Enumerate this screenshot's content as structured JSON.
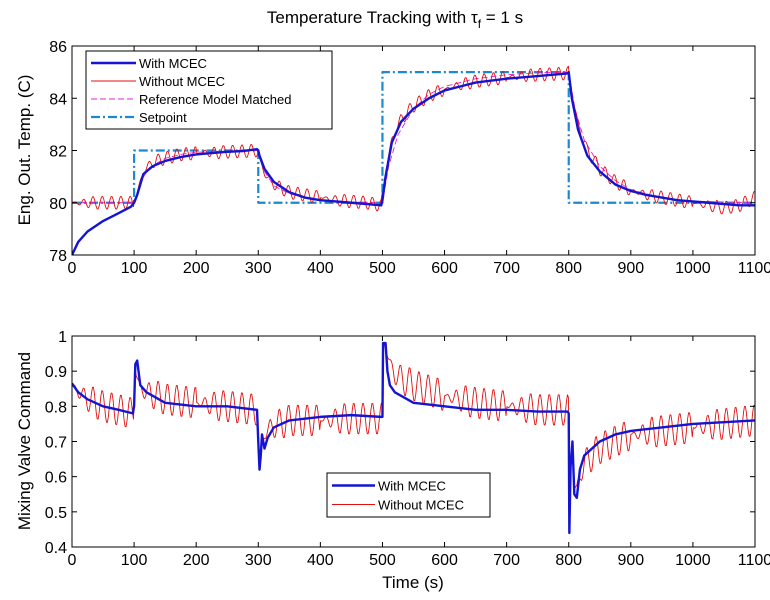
{
  "figure": {
    "title_main": "Temperature Tracking with τ",
    "title_sub": "f",
    "title_tail": " = 1 s"
  },
  "colors": {
    "with_mcec": "#1414d2",
    "without_mcec": "#e01010",
    "reference": "#e020e0",
    "setpoint": "#1a8ad0"
  },
  "chart_data": [
    {
      "type": "line",
      "title": "Temperature Tracking with τf = 1 s",
      "xlabel": "",
      "ylabel": "Eng. Out. Temp. (C)",
      "xlim": [
        0,
        1100
      ],
      "ylim": [
        78,
        86
      ],
      "xticks": [
        "0",
        "100",
        "200",
        "300",
        "400",
        "500",
        "600",
        "700",
        "800",
        "900",
        "1000",
        "1100"
      ],
      "yticks": [
        "78",
        "80",
        "82",
        "84",
        "86"
      ],
      "legend_position": "top-left",
      "series": [
        {
          "name": "With MCEC",
          "style": "solid-thick",
          "x": [
            0,
            10,
            25,
            50,
            75,
            95,
            100,
            105,
            115,
            130,
            150,
            175,
            200,
            225,
            250,
            275,
            298,
            300,
            302,
            310,
            325,
            350,
            375,
            400,
            425,
            450,
            475,
            498,
            500,
            505,
            515,
            530,
            550,
            575,
            600,
            625,
            650,
            700,
            750,
            798,
            800,
            805,
            815,
            830,
            850,
            875,
            900,
            925,
            950,
            975,
            1000,
            1025,
            1050,
            1075,
            1100
          ],
          "y": [
            78.0,
            78.5,
            78.9,
            79.3,
            79.6,
            79.85,
            80.0,
            80.3,
            81.1,
            81.4,
            81.6,
            81.75,
            81.85,
            81.9,
            81.95,
            81.98,
            82.05,
            82.0,
            81.8,
            81.3,
            80.8,
            80.4,
            80.2,
            80.1,
            80.05,
            80.0,
            79.95,
            79.9,
            80.1,
            81.0,
            82.3,
            83.1,
            83.6,
            84.0,
            84.3,
            84.45,
            84.6,
            84.75,
            84.85,
            84.95,
            85.0,
            84.0,
            82.8,
            81.8,
            81.2,
            80.7,
            80.45,
            80.3,
            80.2,
            80.1,
            80.05,
            80.0,
            79.95,
            79.9,
            79.9
          ]
        },
        {
          "name": "Without MCEC",
          "style": "solid-thin",
          "x": [
            0,
            100,
            105,
            115,
            130,
            150,
            175,
            200,
            225,
            250,
            275,
            298,
            300,
            302,
            310,
            325,
            350,
            375,
            400,
            425,
            450,
            475,
            498,
            500,
            505,
            515,
            530,
            550,
            575,
            600,
            625,
            650,
            700,
            750,
            798,
            800,
            805,
            815,
            830,
            850,
            875,
            900,
            925,
            950,
            975,
            1000,
            1025,
            1050,
            1075,
            1100
          ],
          "y": [
            80.0,
            80.0,
            80.4,
            81.2,
            81.55,
            81.7,
            81.85,
            81.9,
            81.92,
            81.95,
            81.97,
            82.0,
            81.95,
            81.7,
            81.1,
            80.7,
            80.4,
            80.3,
            80.2,
            80.1,
            80.05,
            80.0,
            79.9,
            80.2,
            81.2,
            82.4,
            83.2,
            83.7,
            84.1,
            84.35,
            84.5,
            84.65,
            84.8,
            84.9,
            84.95,
            85.0,
            84.2,
            83.0,
            82.0,
            81.3,
            80.8,
            80.5,
            80.3,
            80.2,
            80.1,
            80.0,
            79.9,
            79.8,
            79.9,
            80.2
          ],
          "oscillation_amplitude": 0.25
        },
        {
          "name": "Reference Model Matched",
          "style": "dashed",
          "x": [
            0,
            100,
            110,
            125,
            150,
            175,
            200,
            250,
            300,
            310,
            325,
            350,
            375,
            400,
            450,
            500,
            510,
            525,
            550,
            575,
            600,
            650,
            700,
            750,
            800,
            810,
            825,
            850,
            875,
            900,
            950,
            1000,
            1100
          ],
          "y": [
            80.0,
            80.0,
            80.8,
            81.35,
            81.7,
            81.85,
            81.93,
            81.98,
            82.0,
            81.2,
            80.65,
            80.35,
            80.18,
            80.08,
            80.02,
            80.0,
            81.4,
            82.6,
            83.6,
            84.15,
            84.45,
            84.75,
            84.9,
            84.97,
            85.0,
            83.6,
            82.4,
            81.4,
            80.85,
            80.5,
            80.18,
            80.06,
            80.0
          ]
        },
        {
          "name": "Setpoint",
          "style": "dashdot",
          "x": [
            0,
            100,
            100,
            300,
            300,
            500,
            500,
            800,
            800,
            1100
          ],
          "y": [
            80,
            80,
            82,
            82,
            80,
            80,
            85,
            85,
            80,
            80
          ]
        }
      ]
    },
    {
      "type": "line",
      "title": "",
      "xlabel": "Time (s)",
      "ylabel": "Mixing Valve Command",
      "xlim": [
        0,
        1100
      ],
      "ylim": [
        0.4,
        1.0
      ],
      "xticks": [
        "0",
        "100",
        "200",
        "300",
        "400",
        "500",
        "600",
        "700",
        "800",
        "900",
        "1000",
        "1100"
      ],
      "yticks": [
        "0.4",
        "0.5",
        "0.6",
        "0.7",
        "0.8",
        "0.9",
        "1"
      ],
      "legend_position": "bottom-center",
      "series": [
        {
          "name": "With MCEC",
          "style": "solid-thick",
          "x": [
            0,
            10,
            25,
            50,
            75,
            98,
            100,
            102,
            105,
            110,
            120,
            150,
            200,
            250,
            298,
            300,
            302,
            304,
            306,
            310,
            315,
            325,
            350,
            400,
            450,
            498,
            500,
            501,
            505,
            508,
            512,
            520,
            550,
            600,
            650,
            700,
            750,
            798,
            800,
            801,
            803,
            806,
            809,
            813,
            818,
            825,
            850,
            875,
            900,
            950,
            1000,
            1050,
            1100
          ],
          "y": [
            0.865,
            0.84,
            0.82,
            0.8,
            0.79,
            0.78,
            0.8,
            0.92,
            0.93,
            0.86,
            0.84,
            0.81,
            0.8,
            0.8,
            0.79,
            0.7,
            0.62,
            0.66,
            0.72,
            0.68,
            0.71,
            0.74,
            0.76,
            0.77,
            0.775,
            0.77,
            0.77,
            0.98,
            0.98,
            0.9,
            0.86,
            0.84,
            0.81,
            0.8,
            0.79,
            0.79,
            0.785,
            0.785,
            0.78,
            0.44,
            0.63,
            0.7,
            0.55,
            0.54,
            0.62,
            0.66,
            0.7,
            0.72,
            0.73,
            0.74,
            0.75,
            0.755,
            0.76
          ]
        },
        {
          "name": "Without MCEC",
          "style": "solid-thin",
          "x": [
            0,
            10,
            25,
            50,
            75,
            98,
            100,
            102,
            105,
            110,
            120,
            150,
            200,
            250,
            298,
            300,
            302,
            304,
            306,
            310,
            320,
            350,
            400,
            450,
            498,
            500,
            501,
            505,
            512,
            520,
            550,
            600,
            650,
            700,
            750,
            798,
            800,
            801,
            803,
            806,
            809,
            813,
            818,
            825,
            850,
            875,
            900,
            950,
            1000,
            1050,
            1100
          ],
          "y": [
            0.865,
            0.84,
            0.82,
            0.8,
            0.79,
            0.78,
            0.8,
            0.9,
            0.88,
            0.85,
            0.84,
            0.82,
            0.81,
            0.8,
            0.79,
            0.7,
            0.62,
            0.64,
            0.7,
            0.72,
            0.74,
            0.76,
            0.76,
            0.765,
            0.765,
            0.77,
            0.98,
            0.97,
            0.92,
            0.89,
            0.86,
            0.83,
            0.81,
            0.8,
            0.79,
            0.79,
            0.78,
            0.45,
            0.62,
            0.68,
            0.57,
            0.56,
            0.6,
            0.64,
            0.68,
            0.7,
            0.72,
            0.73,
            0.74,
            0.75,
            0.76
          ],
          "oscillation_amplitude": 0.045
        }
      ]
    }
  ]
}
